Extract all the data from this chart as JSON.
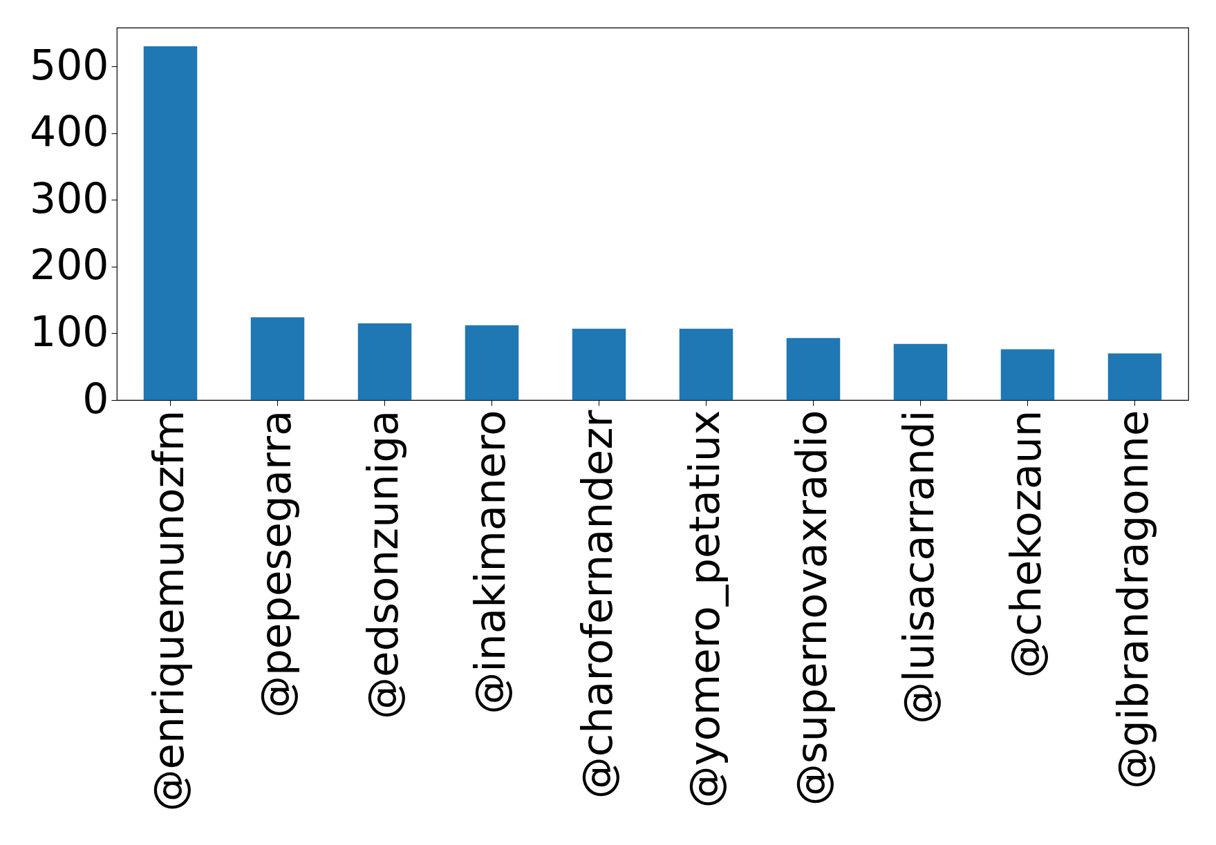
{
  "chart_data": {
    "type": "bar",
    "categories": [
      "@enriquemunozfm",
      "@pepesegarra",
      "@edsonzuniga",
      "@inakimanero",
      "@charofernandezr",
      "@yomero_petatiux",
      "@supernovaxradio",
      "@luisacarrandi",
      "@chekozaun",
      "@gibrandragonne"
    ],
    "values": [
      530,
      124,
      115,
      112,
      107,
      107,
      93,
      84,
      76,
      70
    ],
    "color": "#1f77b4",
    "ylim": [
      0,
      558
    ],
    "yticks": [
      0,
      100,
      200,
      300,
      400,
      500
    ],
    "grid": false
  }
}
